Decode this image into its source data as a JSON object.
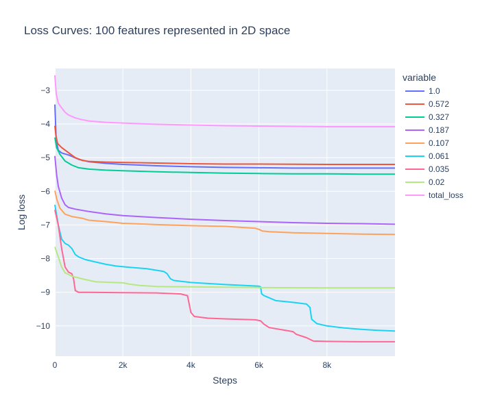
{
  "chart_data": {
    "type": "line",
    "title": "Loss Curves: 100 features represented in 2D space",
    "xlabel": "Steps",
    "ylabel": "Log loss",
    "xlim": [
      0,
      10000
    ],
    "ylim": [
      -10.9,
      -2.35
    ],
    "x_ticks": [
      0,
      2000,
      4000,
      6000,
      8000
    ],
    "x_tick_labels": [
      "0",
      "2k",
      "4k",
      "6k",
      "8k"
    ],
    "y_ticks": [
      -10,
      -9,
      -8,
      -7,
      -6,
      -5,
      -4,
      -3
    ],
    "y_tick_labels": [
      "−10",
      "−9",
      "−8",
      "−7",
      "−6",
      "−5",
      "−4",
      "−3"
    ],
    "grid": true,
    "plot_background": "#e5ecf6",
    "legend": {
      "title": "variable",
      "position": "right"
    },
    "series": [
      {
        "name": "1.0",
        "color": "#636efa",
        "points": [
          [
            0,
            -3.42
          ],
          [
            40,
            -4.5
          ],
          [
            100,
            -4.78
          ],
          [
            200,
            -4.86
          ],
          [
            400,
            -4.92
          ],
          [
            700,
            -5.05
          ],
          [
            1000,
            -5.12
          ],
          [
            1500,
            -5.17
          ],
          [
            2000,
            -5.2
          ],
          [
            3000,
            -5.24
          ],
          [
            4000,
            -5.27
          ],
          [
            5000,
            -5.29
          ],
          [
            6000,
            -5.3
          ],
          [
            7000,
            -5.31
          ],
          [
            8000,
            -5.31
          ],
          [
            9000,
            -5.31
          ],
          [
            10000,
            -5.31
          ]
        ]
      },
      {
        "name": "0.572",
        "color": "#ef553b",
        "points": [
          [
            0,
            -4.05
          ],
          [
            30,
            -4.35
          ],
          [
            80,
            -4.58
          ],
          [
            200,
            -4.7
          ],
          [
            400,
            -4.85
          ],
          [
            600,
            -5.0
          ],
          [
            800,
            -5.08
          ],
          [
            1000,
            -5.11
          ],
          [
            1500,
            -5.13
          ],
          [
            2000,
            -5.14
          ],
          [
            3000,
            -5.16
          ],
          [
            4000,
            -5.18
          ],
          [
            5000,
            -5.19
          ],
          [
            6000,
            -5.19
          ],
          [
            8000,
            -5.2
          ],
          [
            10000,
            -5.2
          ]
        ]
      },
      {
        "name": "0.327",
        "color": "#00cc96",
        "points": [
          [
            0,
            -4.4
          ],
          [
            50,
            -4.7
          ],
          [
            150,
            -4.9
          ],
          [
            300,
            -5.1
          ],
          [
            500,
            -5.22
          ],
          [
            700,
            -5.3
          ],
          [
            1000,
            -5.34
          ],
          [
            1500,
            -5.37
          ],
          [
            2000,
            -5.39
          ],
          [
            3000,
            -5.42
          ],
          [
            4000,
            -5.44
          ],
          [
            5000,
            -5.46
          ],
          [
            6000,
            -5.47
          ],
          [
            7000,
            -5.48
          ],
          [
            8000,
            -5.48
          ],
          [
            9000,
            -5.49
          ],
          [
            10000,
            -5.49
          ]
        ]
      },
      {
        "name": "0.187",
        "color": "#ab63fa",
        "points": [
          [
            0,
            -4.95
          ],
          [
            50,
            -5.5
          ],
          [
            100,
            -5.85
          ],
          [
            200,
            -6.2
          ],
          [
            300,
            -6.4
          ],
          [
            400,
            -6.48
          ],
          [
            600,
            -6.53
          ],
          [
            1000,
            -6.6
          ],
          [
            1500,
            -6.67
          ],
          [
            2000,
            -6.72
          ],
          [
            3000,
            -6.78
          ],
          [
            4000,
            -6.83
          ],
          [
            5000,
            -6.87
          ],
          [
            6000,
            -6.9
          ],
          [
            7000,
            -6.93
          ],
          [
            8000,
            -6.95
          ],
          [
            9000,
            -6.96
          ],
          [
            10000,
            -6.98
          ]
        ]
      },
      {
        "name": "0.107",
        "color": "#ffa15a",
        "points": [
          [
            0,
            -5.98
          ],
          [
            60,
            -6.25
          ],
          [
            150,
            -6.5
          ],
          [
            300,
            -6.68
          ],
          [
            500,
            -6.75
          ],
          [
            800,
            -6.8
          ],
          [
            1000,
            -6.86
          ],
          [
            1500,
            -6.9
          ],
          [
            2000,
            -6.95
          ],
          [
            3000,
            -6.99
          ],
          [
            4000,
            -7.02
          ],
          [
            5000,
            -7.04
          ],
          [
            5900,
            -7.1
          ],
          [
            6000,
            -7.13
          ],
          [
            6100,
            -7.18
          ],
          [
            6300,
            -7.2
          ],
          [
            7000,
            -7.23
          ],
          [
            8000,
            -7.25
          ],
          [
            9000,
            -7.27
          ],
          [
            10000,
            -7.28
          ]
        ]
      },
      {
        "name": "0.061",
        "color": "#19d3f3",
        "points": [
          [
            0,
            -6.4
          ],
          [
            100,
            -7.0
          ],
          [
            200,
            -7.42
          ],
          [
            300,
            -7.55
          ],
          [
            400,
            -7.6
          ],
          [
            500,
            -7.7
          ],
          [
            600,
            -7.88
          ],
          [
            700,
            -7.95
          ],
          [
            900,
            -8.03
          ],
          [
            1200,
            -8.1
          ],
          [
            1500,
            -8.17
          ],
          [
            1800,
            -8.22
          ],
          [
            2200,
            -8.26
          ],
          [
            2700,
            -8.3
          ],
          [
            3200,
            -8.38
          ],
          [
            3300,
            -8.45
          ],
          [
            3400,
            -8.6
          ],
          [
            3500,
            -8.65
          ],
          [
            4000,
            -8.71
          ],
          [
            5000,
            -8.77
          ],
          [
            6000,
            -8.82
          ],
          [
            6050,
            -8.84
          ],
          [
            6080,
            -9.05
          ],
          [
            6150,
            -9.1
          ],
          [
            6500,
            -9.25
          ],
          [
            7000,
            -9.3
          ],
          [
            7400,
            -9.35
          ],
          [
            7500,
            -9.45
          ],
          [
            7550,
            -9.8
          ],
          [
            7700,
            -9.93
          ],
          [
            8000,
            -10.0
          ],
          [
            8500,
            -10.06
          ],
          [
            9000,
            -10.1
          ],
          [
            9500,
            -10.13
          ],
          [
            10000,
            -10.15
          ]
        ]
      },
      {
        "name": "0.035",
        "color": "#ff6692",
        "points": [
          [
            0,
            -6.55
          ],
          [
            100,
            -7.0
          ],
          [
            200,
            -7.7
          ],
          [
            300,
            -8.25
          ],
          [
            400,
            -8.4
          ],
          [
            500,
            -8.45
          ],
          [
            550,
            -8.6
          ],
          [
            600,
            -8.95
          ],
          [
            700,
            -9.0
          ],
          [
            1000,
            -9.0
          ],
          [
            2000,
            -9.01
          ],
          [
            3000,
            -9.02
          ],
          [
            3700,
            -9.05
          ],
          [
            3900,
            -9.1
          ],
          [
            4000,
            -9.6
          ],
          [
            4100,
            -9.72
          ],
          [
            4500,
            -9.77
          ],
          [
            5000,
            -9.79
          ],
          [
            5900,
            -9.82
          ],
          [
            6050,
            -9.85
          ],
          [
            6150,
            -9.95
          ],
          [
            6300,
            -10.05
          ],
          [
            7000,
            -10.17
          ],
          [
            7100,
            -10.25
          ],
          [
            7400,
            -10.35
          ],
          [
            7600,
            -10.45
          ],
          [
            8000,
            -10.46
          ],
          [
            9000,
            -10.47
          ],
          [
            10000,
            -10.47
          ]
        ]
      },
      {
        "name": "0.02",
        "color": "#b6e880",
        "points": [
          [
            0,
            -7.65
          ],
          [
            100,
            -7.95
          ],
          [
            200,
            -8.25
          ],
          [
            300,
            -8.42
          ],
          [
            500,
            -8.52
          ],
          [
            800,
            -8.6
          ],
          [
            1200,
            -8.69
          ],
          [
            2000,
            -8.72
          ],
          [
            2200,
            -8.76
          ],
          [
            2500,
            -8.8
          ],
          [
            3000,
            -8.83
          ],
          [
            4000,
            -8.84
          ],
          [
            6000,
            -8.86
          ],
          [
            8000,
            -8.87
          ],
          [
            10000,
            -8.87
          ]
        ]
      },
      {
        "name": "total_loss",
        "color": "#ff97ff",
        "points": [
          [
            0,
            -2.55
          ],
          [
            40,
            -3.1
          ],
          [
            100,
            -3.38
          ],
          [
            200,
            -3.52
          ],
          [
            300,
            -3.65
          ],
          [
            400,
            -3.73
          ],
          [
            600,
            -3.82
          ],
          [
            800,
            -3.87
          ],
          [
            1000,
            -3.91
          ],
          [
            1500,
            -3.95
          ],
          [
            2000,
            -3.97
          ],
          [
            3000,
            -4.01
          ],
          [
            4000,
            -4.03
          ],
          [
            5000,
            -4.05
          ],
          [
            6000,
            -4.06
          ],
          [
            7000,
            -4.07
          ],
          [
            8000,
            -4.08
          ],
          [
            9000,
            -4.08
          ],
          [
            10000,
            -4.08
          ]
        ]
      }
    ]
  }
}
